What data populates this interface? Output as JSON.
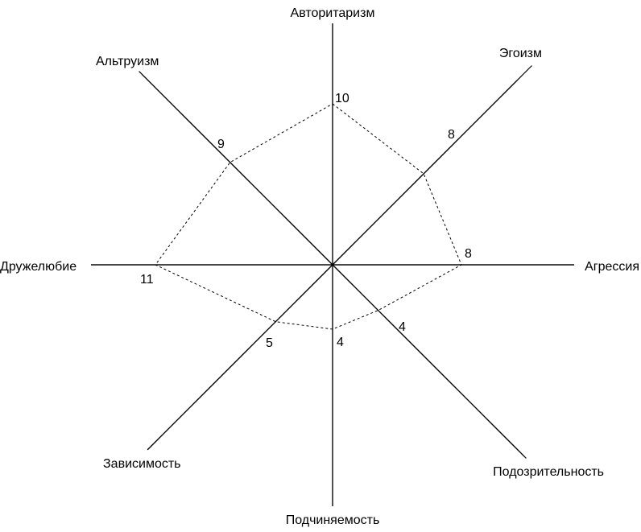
{
  "chart_data": {
    "type": "radar",
    "title": "",
    "axes": [
      {
        "name": "Авторитаризм",
        "value": 10
      },
      {
        "name": "Эгоизм",
        "value": 8
      },
      {
        "name": "Агрессия",
        "value": 8
      },
      {
        "name": "Подозрительность",
        "value": 4
      },
      {
        "name": "Подчиняемость",
        "value": 4
      },
      {
        "name": "Зависимость",
        "value": 5
      },
      {
        "name": "Дружелюбие",
        "value": 11
      },
      {
        "name": "Альтруизм",
        "value": 9
      }
    ],
    "scale_max": 20,
    "grid": false,
    "polygon_style": "dashed"
  }
}
